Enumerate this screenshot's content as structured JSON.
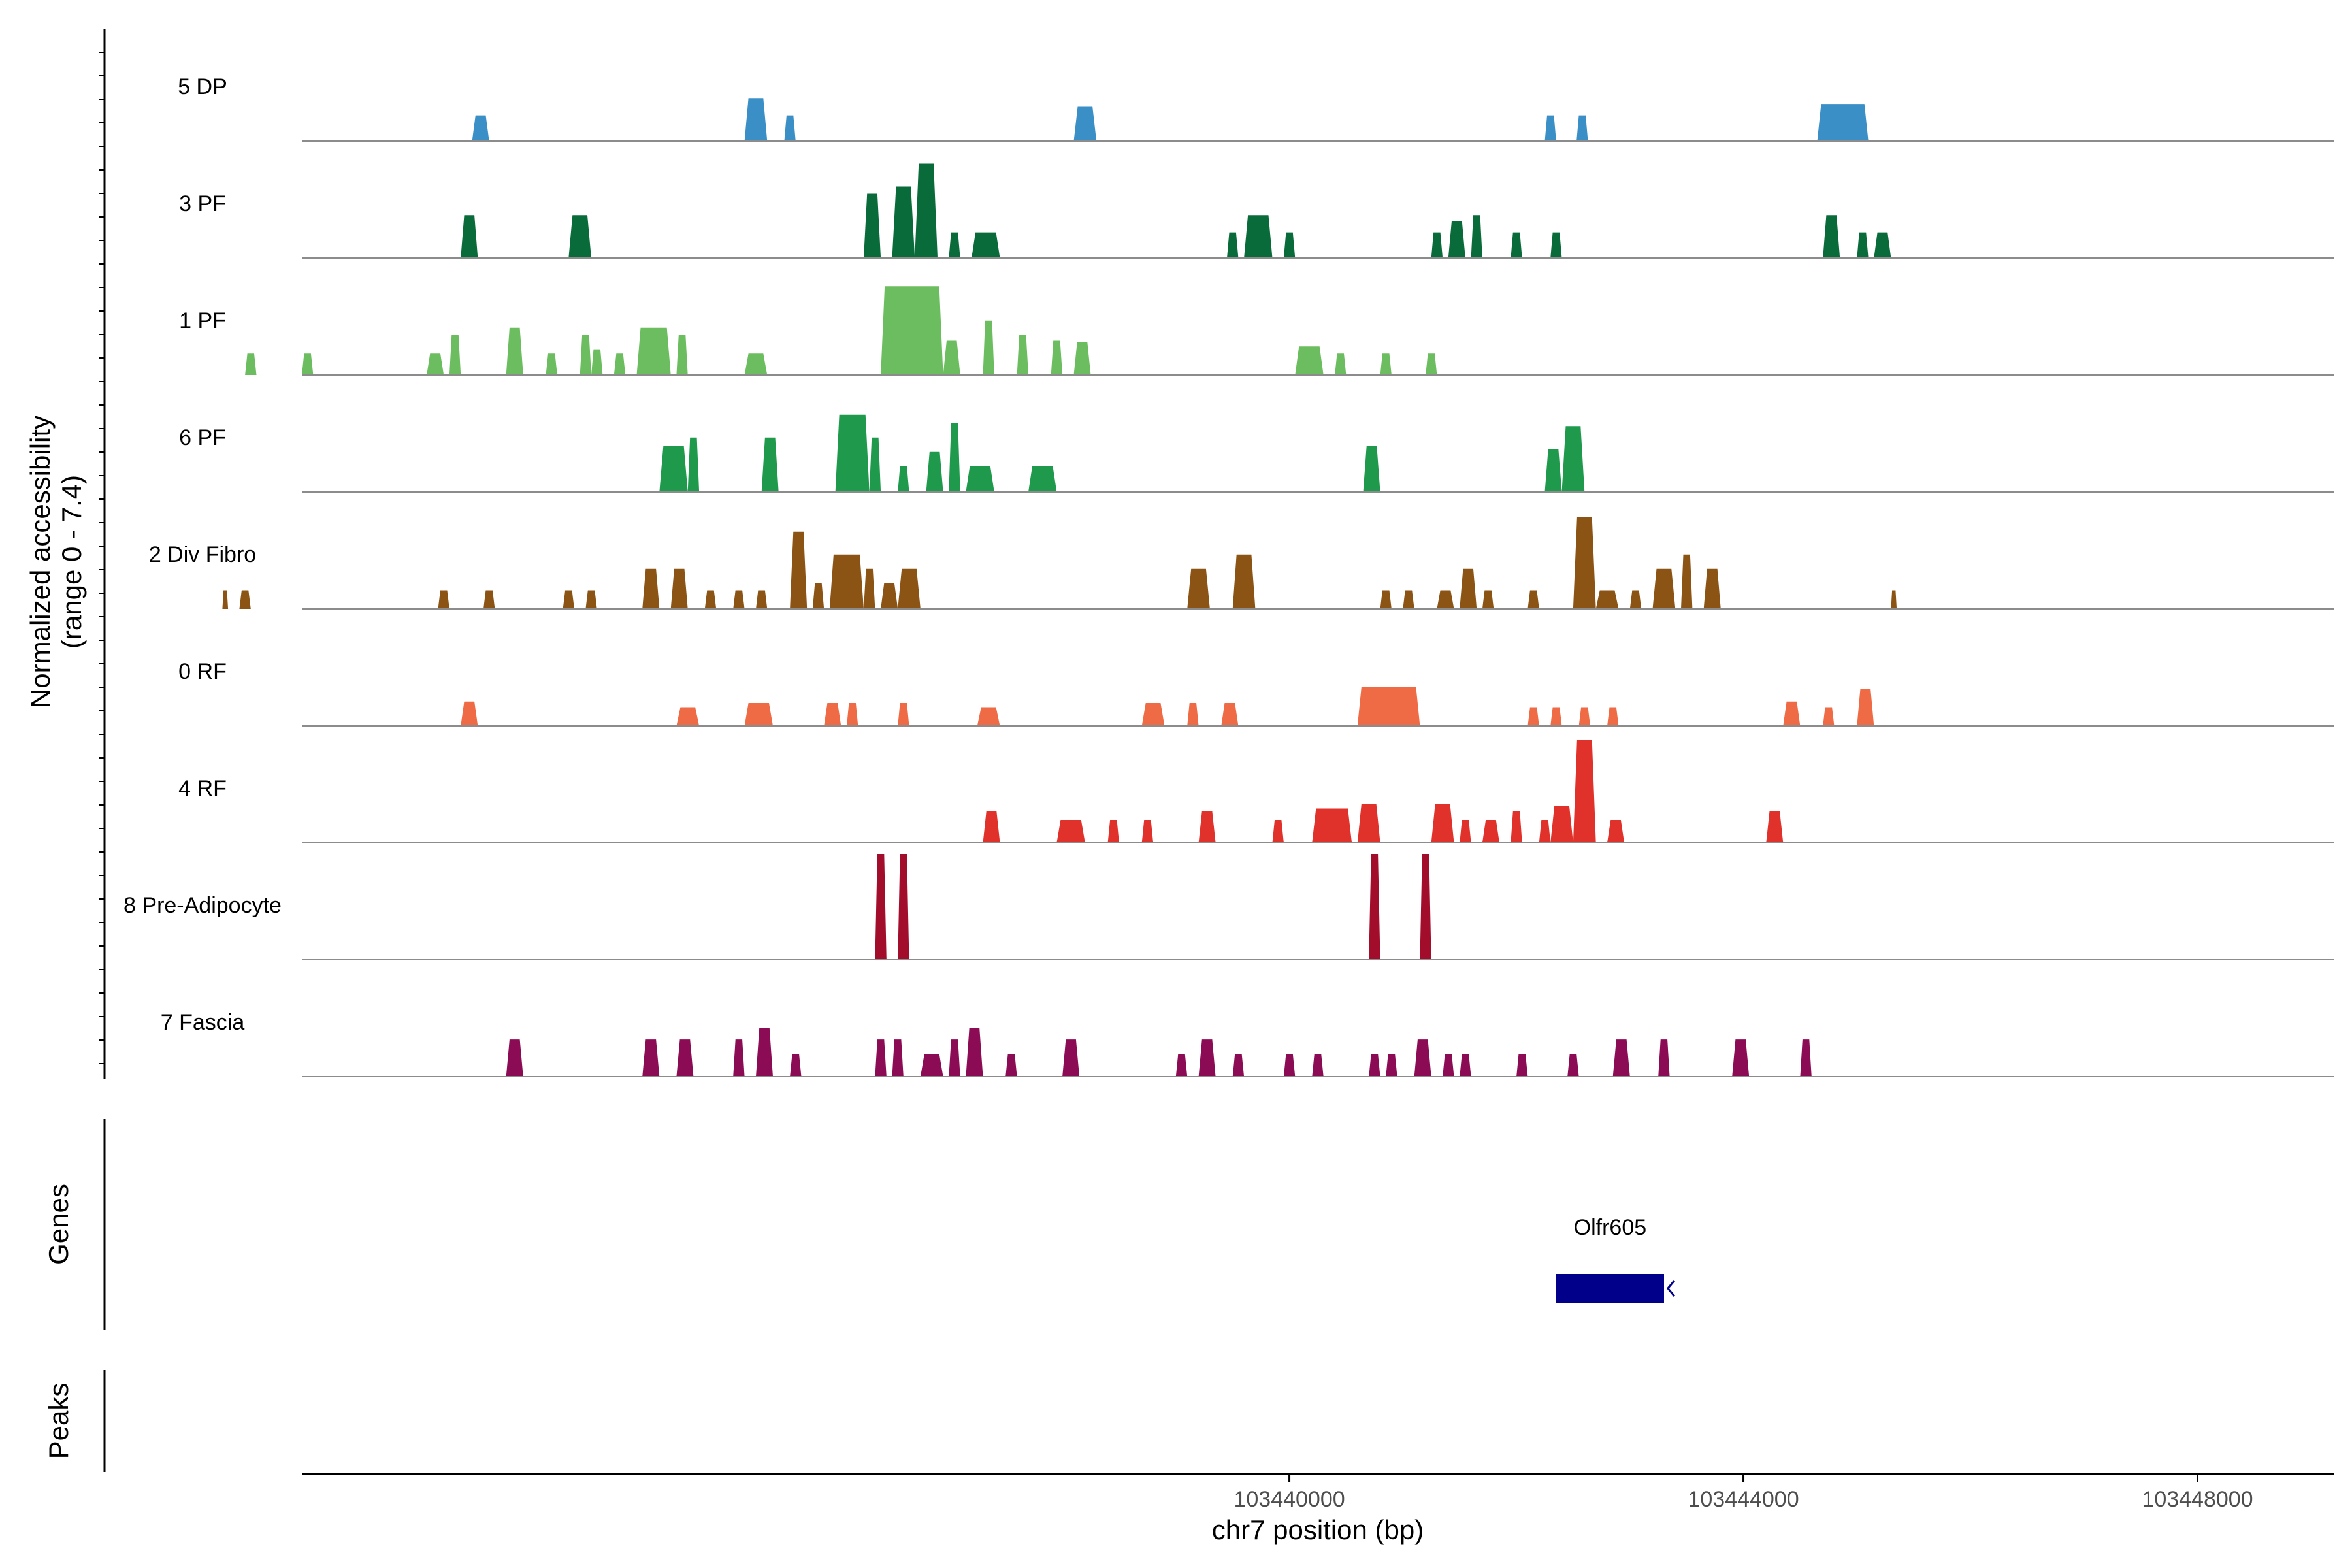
{
  "chart_data": {
    "type": "area",
    "title": "",
    "ylabel": [
      "Normalized accessibility",
      "(range 0 - 7.4)"
    ],
    "xlabel": "chr7 position (bp)",
    "xlim": [
      103431300,
      103449200
    ],
    "ylim": [
      0,
      7.4
    ],
    "x_ticks": [
      {
        "value": 103440000,
        "label": "103440000"
      },
      {
        "value": 103444000,
        "label": "103444000"
      },
      {
        "value": 103448000,
        "label": "103448000"
      }
    ],
    "tracks": [
      {
        "name": "5 DP",
        "color": "#3a8fc7",
        "peaks": [
          [
            103432800,
            103432950,
            1.8
          ],
          [
            103435200,
            103435400,
            3.0
          ],
          [
            103435550,
            103435650,
            1.8
          ],
          [
            103438100,
            103438300,
            2.4
          ],
          [
            103442250,
            103442350,
            1.8
          ],
          [
            103442530,
            103442630,
            1.8
          ],
          [
            103444650,
            103445100,
            2.6
          ]
        ]
      },
      {
        "name": "3 PF",
        "color": "#0a6b3a",
        "peaks": [
          [
            103432700,
            103432850,
            3.0
          ],
          [
            103433650,
            103433850,
            3.0
          ],
          [
            103436250,
            103436400,
            4.5
          ],
          [
            103436500,
            103436700,
            5.0
          ],
          [
            103436700,
            103436900,
            6.6
          ],
          [
            103437000,
            103437100,
            1.8
          ],
          [
            103437200,
            103437450,
            1.8
          ],
          [
            103439450,
            103439550,
            1.8
          ],
          [
            103439600,
            103439850,
            3.0
          ],
          [
            103439950,
            103440050,
            1.8
          ],
          [
            103441250,
            103441350,
            1.8
          ],
          [
            103441400,
            103441550,
            2.6
          ],
          [
            103441600,
            103441700,
            3.0
          ],
          [
            103441950,
            103442050,
            1.8
          ],
          [
            103442300,
            103442400,
            1.8
          ],
          [
            103444700,
            103444850,
            3.0
          ],
          [
            103445000,
            103445100,
            1.8
          ],
          [
            103445150,
            103445300,
            1.8
          ]
        ]
      },
      {
        "name": "1 PF",
        "color": "#6bbd5f",
        "peaks": [
          [
            103430800,
            103430900,
            1.5
          ],
          [
            103431300,
            103431400,
            1.5
          ],
          [
            103432400,
            103432550,
            1.5
          ],
          [
            103432600,
            103432700,
            2.8
          ],
          [
            103433100,
            103433250,
            3.3
          ],
          [
            103433450,
            103433550,
            1.5
          ],
          [
            103433750,
            103433850,
            2.8
          ],
          [
            103433850,
            103433950,
            1.8
          ],
          [
            103434050,
            103434150,
            1.5
          ],
          [
            103434250,
            103434550,
            3.3
          ],
          [
            103434600,
            103434700,
            2.8
          ],
          [
            103435200,
            103435400,
            1.5
          ],
          [
            103436400,
            103436950,
            6.2
          ],
          [
            103436950,
            103437100,
            2.4
          ],
          [
            103437300,
            103437400,
            3.8
          ],
          [
            103437600,
            103437700,
            2.8
          ],
          [
            103437900,
            103438000,
            2.4
          ],
          [
            103438100,
            103438250,
            2.3
          ],
          [
            103440050,
            103440300,
            2.0
          ],
          [
            103440400,
            103440500,
            1.5
          ],
          [
            103440800,
            103440900,
            1.5
          ],
          [
            103441200,
            103441300,
            1.5
          ]
        ]
      },
      {
        "name": "6 PF",
        "color": "#1f9a4d",
        "peaks": [
          [
            103434450,
            103434700,
            3.2
          ],
          [
            103434700,
            103434800,
            3.8
          ],
          [
            103435350,
            103435500,
            3.8
          ],
          [
            103436000,
            103436300,
            5.4
          ],
          [
            103436300,
            103436400,
            3.8
          ],
          [
            103436550,
            103436650,
            1.8
          ],
          [
            103436800,
            103436950,
            2.8
          ],
          [
            103437000,
            103437100,
            4.8
          ],
          [
            103437150,
            103437400,
            1.8
          ],
          [
            103437700,
            103437950,
            1.8
          ],
          [
            103440650,
            103440800,
            3.2
          ],
          [
            103442250,
            103442400,
            3.0
          ],
          [
            103442400,
            103442600,
            4.6
          ]
        ]
      },
      {
        "name": "2 Div Fibro",
        "color": "#8b5314",
        "peaks": [
          [
            103430600,
            103430650,
            1.3
          ],
          [
            103430750,
            103430850,
            1.3
          ],
          [
            103432500,
            103432600,
            1.3
          ],
          [
            103432900,
            103433000,
            1.3
          ],
          [
            103433600,
            103433700,
            1.3
          ],
          [
            103433800,
            103433900,
            1.3
          ],
          [
            103434300,
            103434450,
            2.8
          ],
          [
            103434550,
            103434700,
            2.8
          ],
          [
            103434850,
            103434950,
            1.3
          ],
          [
            103435100,
            103435200,
            1.3
          ],
          [
            103435300,
            103435400,
            1.3
          ],
          [
            103435600,
            103435750,
            5.4
          ],
          [
            103435800,
            103435900,
            1.8
          ],
          [
            103435950,
            103436250,
            3.8
          ],
          [
            103436250,
            103436350,
            2.8
          ],
          [
            103436400,
            103436550,
            1.8
          ],
          [
            103436550,
            103436750,
            2.8
          ],
          [
            103439100,
            103439300,
            2.8
          ],
          [
            103439500,
            103439700,
            3.8
          ],
          [
            103440800,
            103440900,
            1.3
          ],
          [
            103441000,
            103441100,
            1.3
          ],
          [
            103441300,
            103441450,
            1.3
          ],
          [
            103441500,
            103441650,
            2.8
          ],
          [
            103441700,
            103441800,
            1.3
          ],
          [
            103442100,
            103442200,
            1.3
          ],
          [
            103442500,
            103442700,
            6.4
          ],
          [
            103442700,
            103442900,
            1.3
          ],
          [
            103443000,
            103443100,
            1.3
          ],
          [
            103443200,
            103443400,
            2.8
          ],
          [
            103443450,
            103443550,
            3.8
          ],
          [
            103443650,
            103443800,
            2.8
          ],
          [
            103445300,
            103445350,
            1.3
          ]
        ]
      },
      {
        "name": "0 RF",
        "color": "#ee6b45",
        "peaks": [
          [
            103432700,
            103432850,
            1.7
          ],
          [
            103434600,
            103434800,
            1.3
          ],
          [
            103435200,
            103435450,
            1.6
          ],
          [
            103435900,
            103436050,
            1.6
          ],
          [
            103436100,
            103436200,
            1.6
          ],
          [
            103436550,
            103436650,
            1.6
          ],
          [
            103437250,
            103437450,
            1.3
          ],
          [
            103438700,
            103438900,
            1.6
          ],
          [
            103439100,
            103439200,
            1.6
          ],
          [
            103439400,
            103439550,
            1.6
          ],
          [
            103440600,
            103441150,
            2.7
          ],
          [
            103442100,
            103442200,
            1.3
          ],
          [
            103442300,
            103442400,
            1.3
          ],
          [
            103442550,
            103442650,
            1.3
          ],
          [
            103442800,
            103442900,
            1.3
          ],
          [
            103444350,
            103444500,
            1.7
          ],
          [
            103444700,
            103444800,
            1.3
          ],
          [
            103445000,
            103445150,
            2.6
          ]
        ]
      },
      {
        "name": "4 RF",
        "color": "#e0322a",
        "peaks": [
          [
            103437300,
            103437450,
            2.2
          ],
          [
            103437950,
            103438200,
            1.6
          ],
          [
            103438400,
            103438500,
            1.6
          ],
          [
            103438700,
            103438800,
            1.6
          ],
          [
            103439200,
            103439350,
            2.2
          ],
          [
            103439850,
            103439950,
            1.6
          ],
          [
            103440200,
            103440550,
            2.4
          ],
          [
            103440600,
            103440800,
            2.7
          ],
          [
            103441250,
            103441450,
            2.7
          ],
          [
            103441500,
            103441600,
            1.6
          ],
          [
            103441700,
            103441850,
            1.6
          ],
          [
            103441950,
            103442050,
            2.2
          ],
          [
            103442200,
            103442300,
            1.6
          ],
          [
            103442300,
            103442500,
            2.6
          ],
          [
            103442500,
            103442700,
            7.2
          ],
          [
            103442800,
            103442950,
            1.6
          ],
          [
            103444200,
            103444350,
            2.2
          ]
        ]
      },
      {
        "name": "8 Pre-Adipocyte",
        "color": "#a30d2c",
        "peaks": [
          [
            103436350,
            103436450,
            7.4
          ],
          [
            103436550,
            103436650,
            7.4
          ],
          [
            103440700,
            103440800,
            7.4
          ],
          [
            103441150,
            103441250,
            7.4
          ]
        ]
      },
      {
        "name": "7 Fascia",
        "color": "#8c0b55",
        "peaks": [
          [
            103433100,
            103433250,
            2.6
          ],
          [
            103434300,
            103434450,
            2.6
          ],
          [
            103434600,
            103434750,
            2.6
          ],
          [
            103435100,
            103435200,
            2.6
          ],
          [
            103435300,
            103435450,
            3.4
          ],
          [
            103435600,
            103435700,
            1.6
          ],
          [
            103436350,
            103436450,
            2.6
          ],
          [
            103436500,
            103436600,
            2.6
          ],
          [
            103436750,
            103436950,
            1.6
          ],
          [
            103437000,
            103437100,
            2.6
          ],
          [
            103437150,
            103437300,
            3.4
          ],
          [
            103437500,
            103437600,
            1.6
          ],
          [
            103438000,
            103438150,
            2.6
          ],
          [
            103439000,
            103439100,
            1.6
          ],
          [
            103439200,
            103439350,
            2.6
          ],
          [
            103439500,
            103439600,
            1.6
          ],
          [
            103439950,
            103440050,
            1.6
          ],
          [
            103440200,
            103440300,
            1.6
          ],
          [
            103440700,
            103440800,
            1.6
          ],
          [
            103440850,
            103440950,
            1.6
          ],
          [
            103441100,
            103441250,
            2.6
          ],
          [
            103441350,
            103441450,
            1.6
          ],
          [
            103441500,
            103441600,
            1.6
          ],
          [
            103442000,
            103442100,
            1.6
          ],
          [
            103442450,
            103442550,
            1.6
          ],
          [
            103442850,
            103443000,
            2.6
          ],
          [
            103443250,
            103443350,
            2.6
          ],
          [
            103443900,
            103444050,
            2.6
          ],
          [
            103444500,
            103444600,
            2.6
          ]
        ]
      }
    ],
    "genes": [
      {
        "name": "Olfr605",
        "start": 103442350,
        "end": 103443300,
        "strand": "-",
        "color": "#00008b"
      }
    ],
    "side_panels": [
      "Genes",
      "Peaks"
    ]
  }
}
